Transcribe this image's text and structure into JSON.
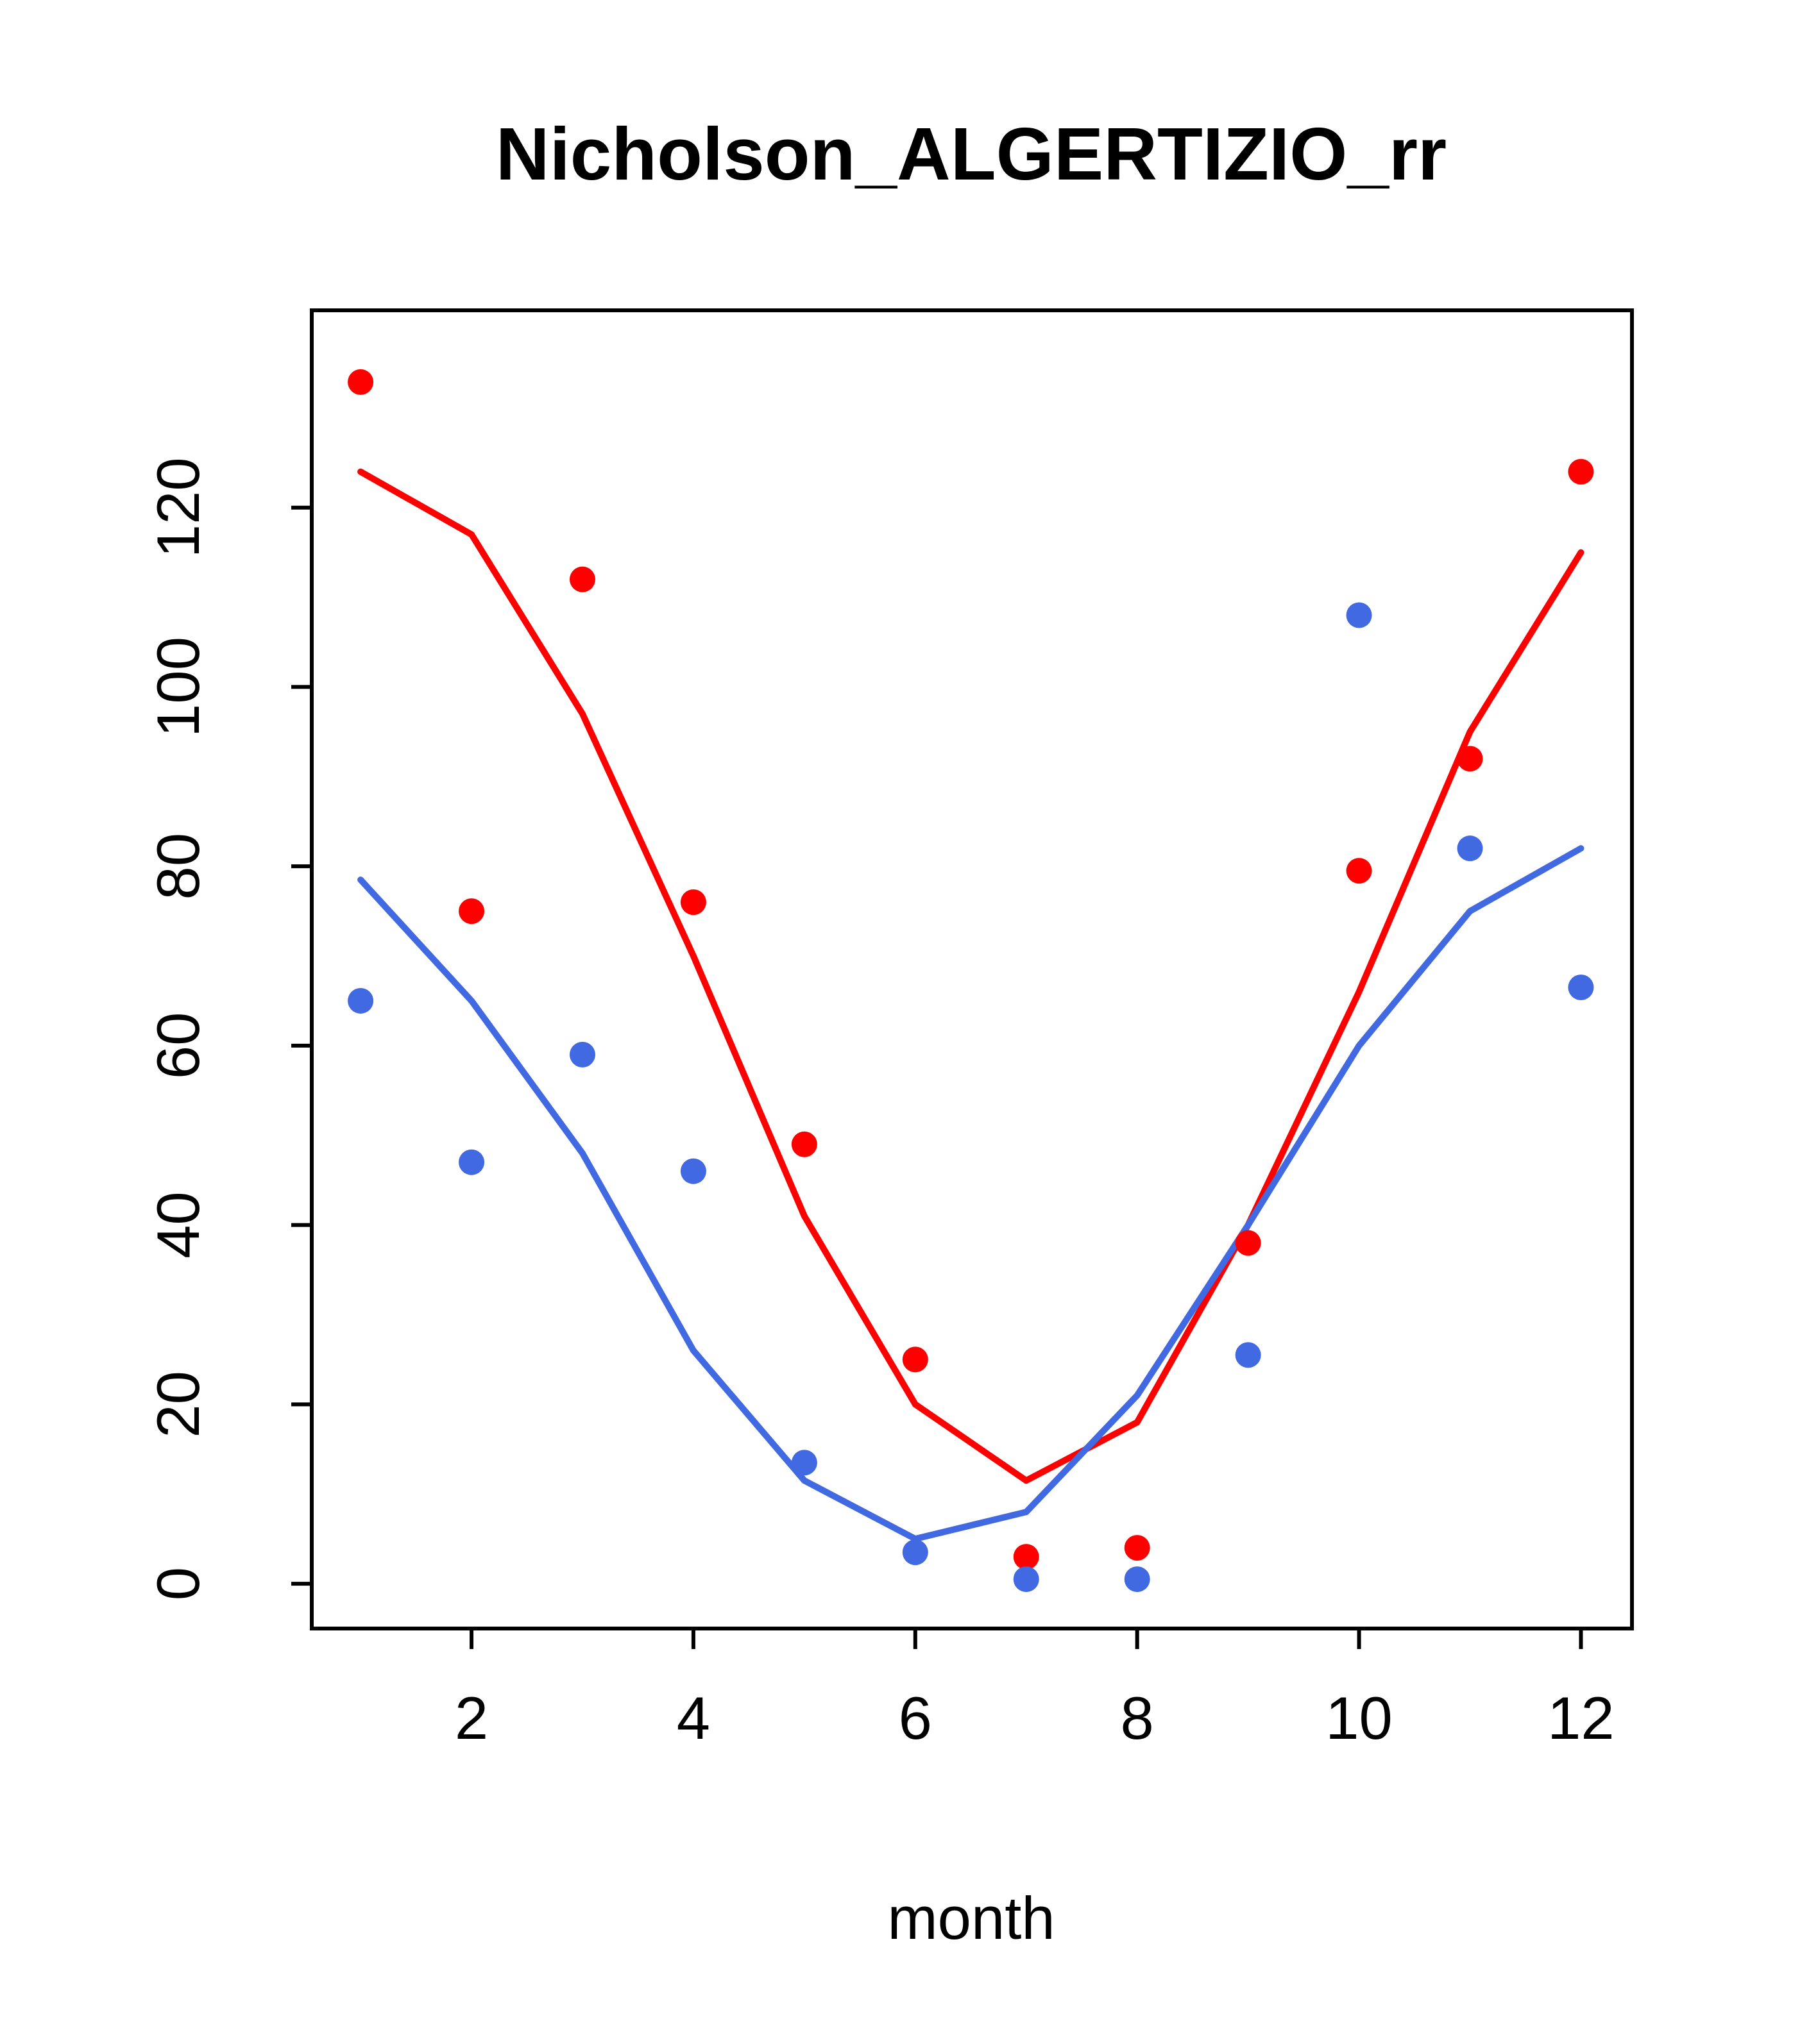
{
  "chart_data": {
    "type": "scatter",
    "title": "Nicholson_ALGERTIZIO_rr",
    "xlabel": "month",
    "ylabel": "",
    "x": [
      1,
      2,
      3,
      4,
      5,
      6,
      7,
      8,
      9,
      10,
      11,
      12
    ],
    "x_ticks": [
      2,
      4,
      6,
      8,
      10,
      12
    ],
    "y_ticks": [
      0,
      20,
      40,
      60,
      80,
      100,
      120
    ],
    "xlim": [
      0.56,
      12.46
    ],
    "ylim": [
      -5,
      142
    ],
    "grid": false,
    "legend": "none",
    "colors": {
      "red": "#FF0000",
      "blue": "#4169E1",
      "axis": "#000000",
      "background": "#FFFFFF"
    },
    "series": [
      {
        "name": "red_scatter",
        "kind": "points",
        "color": "#FF0000",
        "values": [
          134,
          75,
          112,
          76,
          49,
          25,
          3,
          4,
          38,
          79.5,
          92,
          124
        ]
      },
      {
        "name": "blue_scatter",
        "kind": "points",
        "color": "#4169E1",
        "values": [
          65,
          47,
          59,
          46,
          13.5,
          3.5,
          0.5,
          0.5,
          25.5,
          108,
          82,
          66.5
        ]
      },
      {
        "name": "red_trend_line",
        "kind": "line",
        "color": "#FF0000",
        "values": [
          124,
          117,
          97,
          70,
          41,
          20,
          11.5,
          18,
          40,
          66,
          95,
          115
        ]
      },
      {
        "name": "blue_trend_line",
        "kind": "line",
        "color": "#4169E1",
        "values": [
          78.5,
          65,
          48,
          26,
          11.5,
          5,
          8,
          21,
          40,
          60,
          75,
          82
        ]
      }
    ]
  }
}
